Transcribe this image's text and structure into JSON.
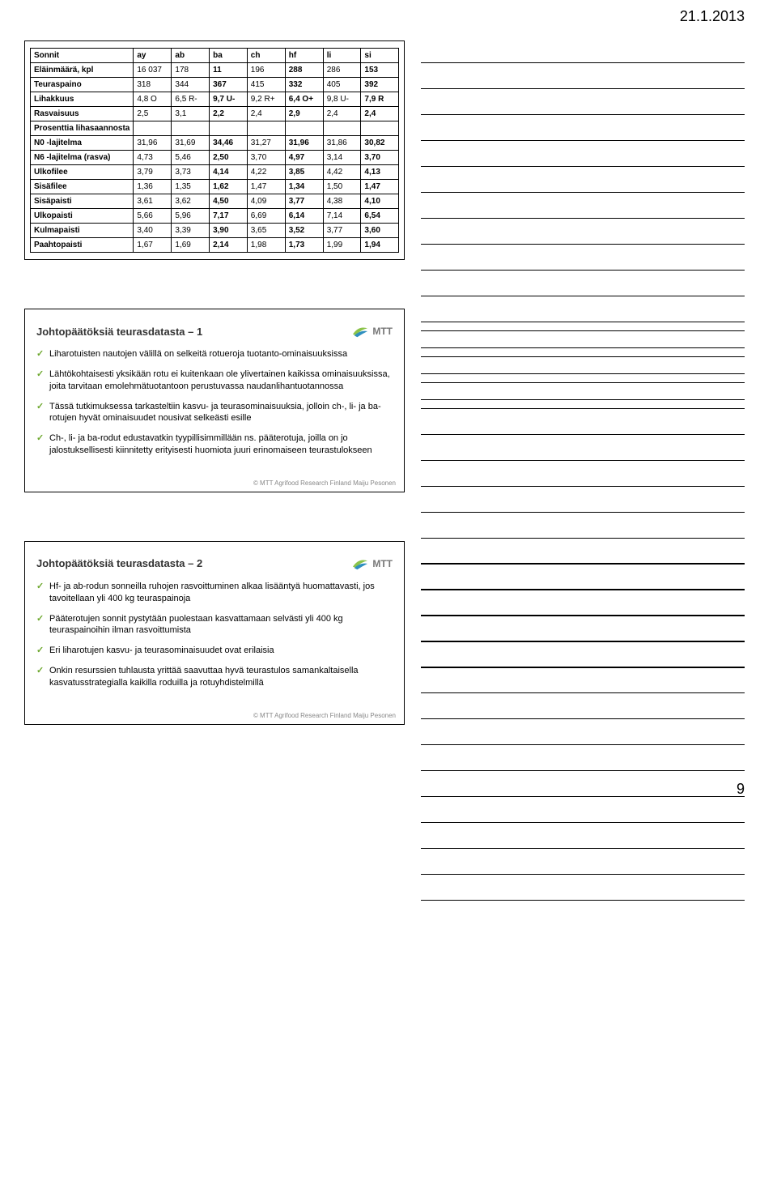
{
  "page_date": "21.1.2013",
  "page_number": "9",
  "footer_credit": "© MTT Agrifood Research Finland Maiju Pesonen",
  "table1": {
    "columns": [
      "Sonnit",
      "ay",
      "ab",
      "ba",
      "ch",
      "hf",
      "li",
      "si"
    ],
    "rows": [
      {
        "label": "Eläinmäärä, kpl",
        "cells": [
          "16 037",
          "178",
          "11",
          "196",
          "288",
          "286",
          "153"
        ],
        "bold": true
      },
      {
        "label": "Teuraspaino",
        "cells": [
          "318",
          "344",
          "367",
          "415",
          "332",
          "405",
          "392"
        ],
        "bold": true
      },
      {
        "label": "Lihakkuus",
        "cells": [
          "4,8 O",
          "6,5 R-",
          "9,7 U-",
          "9,2 R+",
          "6,4 O+",
          "9,8 U-",
          "7,9 R"
        ],
        "bold": true
      },
      {
        "label": "Rasvaisuus",
        "cells": [
          "2,5",
          "3,1",
          "2,2",
          "2,4",
          "2,9",
          "2,4",
          "2,4"
        ],
        "bold": true
      },
      {
        "label": "Prosenttia lihasaannosta",
        "cells": [
          "",
          "",
          "",
          "",
          "",
          "",
          ""
        ],
        "bold": true
      },
      {
        "label": "N0 -lajitelma",
        "cells": [
          "31,96",
          "31,69",
          "34,46",
          "31,27",
          "31,96",
          "31,86",
          "30,82"
        ],
        "bold": true
      },
      {
        "label": "N6 -lajitelma (rasva)",
        "cells": [
          "4,73",
          "5,46",
          "2,50",
          "3,70",
          "4,97",
          "3,14",
          "3,70"
        ],
        "bold": true
      },
      {
        "label": "Ulkofilee",
        "cells": [
          "3,79",
          "3,73",
          "4,14",
          "4,22",
          "3,85",
          "4,42",
          "4,13"
        ],
        "bold": true
      },
      {
        "label": "Sisäfilee",
        "cells": [
          "1,36",
          "1,35",
          "1,62",
          "1,47",
          "1,34",
          "1,50",
          "1,47"
        ],
        "bold": true
      },
      {
        "label": "Sisäpaisti",
        "cells": [
          "3,61",
          "3,62",
          "4,50",
          "4,09",
          "3,77",
          "4,38",
          "4,10"
        ],
        "bold": true
      },
      {
        "label": "Ulkopaisti",
        "cells": [
          "5,66",
          "5,96",
          "7,17",
          "6,69",
          "6,14",
          "7,14",
          "6,54"
        ],
        "bold": true
      },
      {
        "label": "Kulmapaisti",
        "cells": [
          "3,40",
          "3,39",
          "3,90",
          "3,65",
          "3,52",
          "3,77",
          "3,60"
        ],
        "bold": true
      },
      {
        "label": "Paahtopaisti",
        "cells": [
          "1,67",
          "1,69",
          "2,14",
          "1,98",
          "1,73",
          "1,99",
          "1,94"
        ],
        "bold": true
      }
    ],
    "col_widths": [
      "26%",
      "10.5%",
      "10.5%",
      "10.5%",
      "10.5%",
      "10.5%",
      "10.5%",
      "10.5%"
    ],
    "header_bold_cols": [
      3,
      5,
      7
    ]
  },
  "slide2": {
    "title": "Johtopäätöksiä teurasdatasta – 1",
    "bullets": [
      "Liharotuisten nautojen välillä on selkeitä rotueroja tuotanto-ominaisuuksissa",
      "Lähtökohtaisesti yksikään rotu ei kuitenkaan ole ylivertainen kaikissa ominaisuuksissa, joita tarvitaan emolehmätuotantoon perustuvassa naudanlihantuotannossa",
      "Tässä tutkimuksessa tarkasteltiin kasvu- ja teurasominaisuuksia, jolloin ch-, li- ja ba-rotujen hyvät ominaisuudet nousivat selkeästi esille",
      "Ch-, li- ja ba-rodut edustavatkin tyypillisimmillään ns. pääterotuja, joilla on jo jalostuksellisesti kiinnitetty erityisesti huomiota juuri erinomaiseen teurastulokseen"
    ]
  },
  "slide3": {
    "title": "Johtopäätöksiä teurasdatasta – 2",
    "bullets": [
      "Hf- ja ab-rodun sonneilla ruhojen rasvoittuminen alkaa lisääntyä huomattavasti, jos tavoitellaan yli 400 kg teuraspainoja",
      "Pääterotujen sonnit pystytään puolestaan kasvattamaan selvästi yli 400 kg teuraspainoihin ilman rasvoittumista",
      "Eri liharotujen kasvu- ja teurasominaisuudet ovat erilaisia",
      "Onkin resurssien tuhlausta yrittää saavuttaa hyvä teurastulos samankaltaisella kasvatusstrategialla kaikilla roduilla ja rotuyhdistelmillä"
    ]
  },
  "logo_text": "MTT",
  "colors": {
    "check_green": "#6ea82f",
    "logo_green": "#8bc34a",
    "logo_blue": "#2f8fbf"
  },
  "note_lines_per_block": 14
}
